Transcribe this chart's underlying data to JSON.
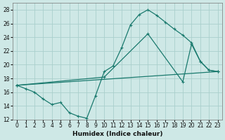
{
  "xlabel": "Humidex (Indice chaleur)",
  "bg_color": "#cee8e6",
  "line_color": "#1a7a6e",
  "grid_color": "#aacfcc",
  "xlim": [
    -0.5,
    23.5
  ],
  "ylim": [
    12,
    29
  ],
  "yticks": [
    12,
    14,
    16,
    18,
    20,
    22,
    24,
    26,
    28
  ],
  "xticks": [
    0,
    1,
    2,
    3,
    4,
    5,
    6,
    7,
    8,
    9,
    10,
    11,
    12,
    13,
    14,
    15,
    16,
    17,
    18,
    19,
    20,
    21,
    22,
    23
  ],
  "line1_x": [
    0,
    1,
    2,
    3,
    4,
    5,
    6,
    7,
    8,
    9,
    10,
    11,
    12,
    13,
    14,
    15,
    16,
    17,
    18,
    19,
    20,
    21,
    22,
    23
  ],
  "line1_y": [
    17.0,
    16.5,
    16.0,
    15.0,
    14.2,
    14.5,
    13.0,
    12.5,
    12.2,
    15.5,
    19.0,
    19.8,
    22.5,
    25.8,
    27.3,
    28.0,
    27.2,
    26.2,
    25.2,
    24.3,
    23.2,
    20.5,
    19.2,
    19.0
  ],
  "line2_x": [
    0,
    10,
    15,
    19,
    20,
    21,
    22,
    23
  ],
  "line2_y": [
    17.0,
    18.2,
    24.5,
    17.5,
    23.0,
    20.5,
    19.2,
    19.0
  ],
  "line3_x": [
    0,
    23
  ],
  "line3_y": [
    17.0,
    19.0
  ]
}
